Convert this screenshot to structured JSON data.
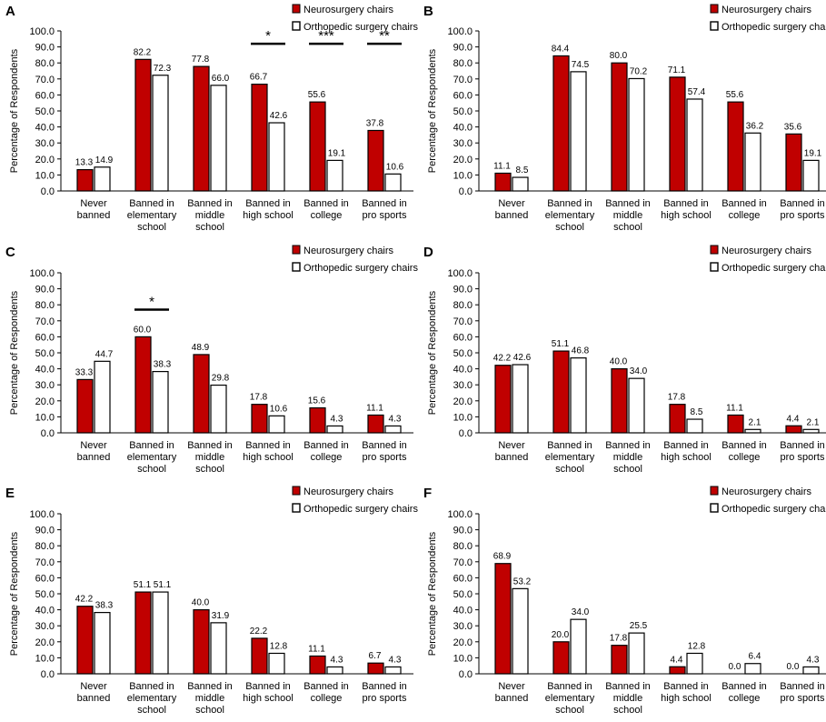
{
  "colors": {
    "neuro": "#c00000",
    "ortho": "#ffffff",
    "axis": "#000000",
    "bar_stroke": "#000000"
  },
  "legend": {
    "neuro": "Neurosurgery chairs",
    "ortho": "Orthopedic surgery chairs"
  },
  "chart_data": [
    {
      "panel": "A",
      "type": "bar",
      "ylabel": "Percentage of Respondents",
      "ylim": [
        0,
        100
      ],
      "yticks": [
        "0.0",
        "10.0",
        "20.0",
        "30.0",
        "40.0",
        "50.0",
        "60.0",
        "70.0",
        "80.0",
        "90.0",
        "100.0"
      ],
      "categories": [
        "Never banned",
        "Banned in elementary school",
        "Banned in middle school",
        "Banned in high school",
        "Banned in college",
        "Banned in pro sports"
      ],
      "category_lines": [
        [
          "Never",
          "banned"
        ],
        [
          "Banned in",
          "elementary",
          "school"
        ],
        [
          "Banned in",
          "middle",
          "school"
        ],
        [
          "Banned in",
          "high school"
        ],
        [
          "Banned in",
          "college"
        ],
        [
          "Banned in",
          "pro sports"
        ]
      ],
      "series": [
        {
          "name": "Neurosurgery chairs",
          "values": [
            13.3,
            82.2,
            77.8,
            66.7,
            55.6,
            37.8
          ],
          "labels": [
            "13.3",
            "82.2",
            "77.8",
            "66.7",
            "55.6",
            "37.8"
          ]
        },
        {
          "name": "Orthopedic surgery chairs",
          "values": [
            14.9,
            72.3,
            66.0,
            42.6,
            19.1,
            10.6
          ],
          "labels": [
            "14.9",
            "72.3",
            "66.0",
            "42.6",
            "19.1",
            "10.6"
          ]
        }
      ],
      "significance": [
        {
          "category_index": 3,
          "label": "*",
          "level": 92
        },
        {
          "category_index": 4,
          "label": "***",
          "level": 92
        },
        {
          "category_index": 5,
          "label": "**",
          "level": 92
        }
      ]
    },
    {
      "panel": "B",
      "type": "bar",
      "ylabel": "Percentage of Respondents",
      "ylim": [
        0,
        100
      ],
      "yticks": [
        "0.0",
        "10.0",
        "20.0",
        "30.0",
        "40.0",
        "50.0",
        "60.0",
        "70.0",
        "80.0",
        "90.0",
        "100.0"
      ],
      "categories": [
        "Never banned",
        "Banned in elementary school",
        "Banned in middle school",
        "Banned in high school",
        "Banned in college",
        "Banned in pro sports"
      ],
      "category_lines": [
        [
          "Never",
          "banned"
        ],
        [
          "Banned in",
          "elementary",
          "school"
        ],
        [
          "Banned in",
          "middle",
          "school"
        ],
        [
          "Banned in",
          "high school"
        ],
        [
          "Banned in",
          "college"
        ],
        [
          "Banned in",
          "pro sports"
        ]
      ],
      "series": [
        {
          "name": "Neurosurgery chairs",
          "values": [
            11.1,
            84.4,
            80.0,
            71.1,
            55.6,
            35.6
          ],
          "labels": [
            "11.1",
            "84.4",
            "80.0",
            "71.1",
            "55.6",
            "35.6"
          ]
        },
        {
          "name": "Orthopedic surgery chairs",
          "values": [
            8.5,
            74.5,
            70.2,
            57.4,
            36.2,
            19.1
          ],
          "labels": [
            "8.5",
            "74.5",
            "70.2",
            "57.4",
            "36.2",
            "19.1"
          ]
        }
      ],
      "significance": []
    },
    {
      "panel": "C",
      "type": "bar",
      "ylabel": "Percentage of Respondents",
      "ylim": [
        0,
        100
      ],
      "yticks": [
        "0.0",
        "10.0",
        "20.0",
        "30.0",
        "40.0",
        "50.0",
        "60.0",
        "70.0",
        "80.0",
        "90.0",
        "100.0"
      ],
      "categories": [
        "Never banned",
        "Banned in elementary school",
        "Banned in middle school",
        "Banned in high school",
        "Banned in college",
        "Banned in pro sports"
      ],
      "category_lines": [
        [
          "Never",
          "banned"
        ],
        [
          "Banned in",
          "elementary",
          "school"
        ],
        [
          "Banned in",
          "middle",
          "school"
        ],
        [
          "Banned in",
          "high school"
        ],
        [
          "Banned in",
          "college"
        ],
        [
          "Banned in",
          "pro sports"
        ]
      ],
      "series": [
        {
          "name": "Neurosurgery chairs",
          "values": [
            33.3,
            60.0,
            48.9,
            17.8,
            15.6,
            11.1
          ],
          "labels": [
            "33.3",
            "60.0",
            "48.9",
            "17.8",
            "15.6",
            "11.1"
          ]
        },
        {
          "name": "Orthopedic surgery chairs",
          "values": [
            44.7,
            38.3,
            29.8,
            10.6,
            4.3,
            4.3
          ],
          "labels": [
            "44.7",
            "38.3",
            "29.8",
            "10.6",
            "4.3",
            "4.3"
          ]
        }
      ],
      "significance": [
        {
          "category_index": 1,
          "label": "*",
          "level": 77
        }
      ]
    },
    {
      "panel": "D",
      "type": "bar",
      "ylabel": "Percentage of Respondents",
      "ylim": [
        0,
        100
      ],
      "yticks": [
        "0.0",
        "10.0",
        "20.0",
        "30.0",
        "40.0",
        "50.0",
        "60.0",
        "70.0",
        "80.0",
        "90.0",
        "100.0"
      ],
      "categories": [
        "Never banned",
        "Banned in elementary school",
        "Banned in middle school",
        "Banned in high school",
        "Banned in college",
        "Banned in pro sports"
      ],
      "category_lines": [
        [
          "Never",
          "banned"
        ],
        [
          "Banned in",
          "elementary",
          "school"
        ],
        [
          "Banned in",
          "middle",
          "school"
        ],
        [
          "Banned in",
          "high school"
        ],
        [
          "Banned in",
          "college"
        ],
        [
          "Banned in",
          "pro sports"
        ]
      ],
      "series": [
        {
          "name": "Neurosurgery chairs",
          "values": [
            42.2,
            51.1,
            40.0,
            17.8,
            11.1,
            4.4
          ],
          "labels": [
            "42.2",
            "51.1",
            "40.0",
            "17.8",
            "11.1",
            "4.4"
          ]
        },
        {
          "name": "Orthopedic surgery chairs",
          "values": [
            42.6,
            46.8,
            34.0,
            8.5,
            2.1,
            2.1
          ],
          "labels": [
            "42.6",
            "46.8",
            "34.0",
            "8.5",
            "2.1",
            "2.1"
          ]
        }
      ],
      "significance": []
    },
    {
      "panel": "E",
      "type": "bar",
      "ylabel": "Percentage of Respondents",
      "ylim": [
        0,
        100
      ],
      "yticks": [
        "0.0",
        "10.0",
        "20.0",
        "30.0",
        "40.0",
        "50.0",
        "60.0",
        "70.0",
        "80.0",
        "90.0",
        "100.0"
      ],
      "categories": [
        "Never banned",
        "Banned in elementary school",
        "Banned in middle school",
        "Banned in high school",
        "Banned in college",
        "Banned in pro sports"
      ],
      "category_lines": [
        [
          "Never",
          "banned"
        ],
        [
          "Banned in",
          "elementary",
          "school"
        ],
        [
          "Banned in",
          "middle",
          "school"
        ],
        [
          "Banned in",
          "high school"
        ],
        [
          "Banned in",
          "college"
        ],
        [
          "Banned in",
          "pro sports"
        ]
      ],
      "series": [
        {
          "name": "Neurosurgery chairs",
          "values": [
            42.2,
            51.1,
            40.0,
            22.2,
            11.1,
            6.7
          ],
          "labels": [
            "42.2",
            "51.1",
            "40.0",
            "22.2",
            "11.1",
            "6.7"
          ]
        },
        {
          "name": "Orthopedic surgery chairs",
          "values": [
            38.3,
            51.1,
            31.9,
            12.8,
            4.3,
            4.3
          ],
          "labels": [
            "38.3",
            "51.1",
            "31.9",
            "12.8",
            "4.3",
            "4.3"
          ]
        }
      ],
      "significance": []
    },
    {
      "panel": "F",
      "type": "bar",
      "ylabel": "Percentage of Respondents",
      "ylim": [
        0,
        100
      ],
      "yticks": [
        "0.0",
        "10.0",
        "20.0",
        "30.0",
        "40.0",
        "50.0",
        "60.0",
        "70.0",
        "80.0",
        "90.0",
        "100.0"
      ],
      "categories": [
        "Never banned",
        "Banned in elementary school",
        "Banned in middle school",
        "Banned in high school",
        "Banned in college",
        "Banned in pro sports"
      ],
      "category_lines": [
        [
          "Never",
          "banned"
        ],
        [
          "Banned in",
          "elementary",
          "school"
        ],
        [
          "Banned in",
          "middle",
          "school"
        ],
        [
          "Banned in",
          "high school"
        ],
        [
          "Banned in",
          "college"
        ],
        [
          "Banned in",
          "pro sports"
        ]
      ],
      "series": [
        {
          "name": "Neurosurgery chairs",
          "values": [
            68.9,
            20.0,
            17.8,
            4.4,
            0.0,
            0.0
          ],
          "labels": [
            "68.9",
            "20.0",
            "17.8",
            "4.4",
            "0.0",
            "0.0"
          ]
        },
        {
          "name": "Orthopedic surgery chairs",
          "values": [
            53.2,
            34.0,
            25.5,
            12.8,
            6.4,
            4.3
          ],
          "labels": [
            "53.2",
            "34.0",
            "25.5",
            "12.8",
            "6.4",
            "4.3"
          ]
        }
      ],
      "significance": []
    }
  ]
}
